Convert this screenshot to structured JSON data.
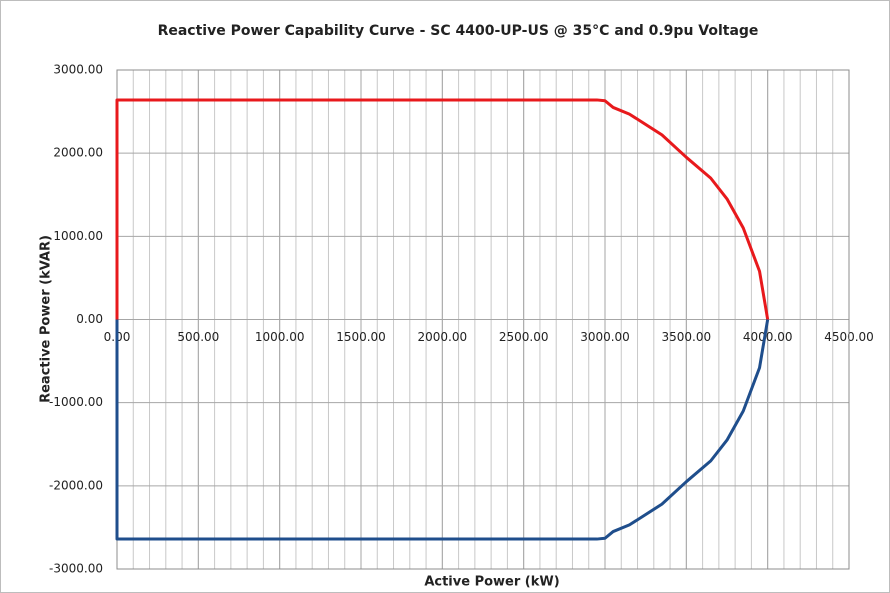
{
  "chart_data": {
    "type": "line",
    "title": "Reactive Power Capability Curve - SC 4400-UP-US @ 35°C and 0.9pu Voltage",
    "x_label": "Active Power (kW)",
    "y_label": "Reactive Power (kVAR)",
    "xlim": [
      0,
      4500
    ],
    "ylim": [
      -3000,
      3000
    ],
    "xticks": [
      {
        "value": 0,
        "label": "0.00"
      },
      {
        "value": 500,
        "label": "500.00"
      },
      {
        "value": 1000,
        "label": "1000.00"
      },
      {
        "value": 1500,
        "label": "1500.00"
      },
      {
        "value": 2000,
        "label": "2000.00"
      },
      {
        "value": 2500,
        "label": "2500.00"
      },
      {
        "value": 3000,
        "label": "3000.00"
      },
      {
        "value": 3500,
        "label": "3500.00"
      },
      {
        "value": 4000,
        "label": "4000.00"
      },
      {
        "value": 4500,
        "label": "4500.00"
      }
    ],
    "yticks": [
      {
        "value": -3000,
        "label": "-3000.00"
      },
      {
        "value": -2000,
        "label": "-2000.00"
      },
      {
        "value": -1000,
        "label": "-1000.00"
      },
      {
        "value": 0,
        "label": "0.00"
      },
      {
        "value": 1000,
        "label": "1000.00"
      },
      {
        "value": 2000,
        "label": "2000.00"
      },
      {
        "value": 3000,
        "label": "3000.00"
      }
    ],
    "x_minor_step": 100,
    "grid": true,
    "series": [
      {
        "color": "#e8191c",
        "x": [
          0,
          0,
          2950,
          3000,
          3050,
          3150,
          3350,
          3500,
          3650,
          3750,
          3850,
          3950,
          4000
        ],
        "values": [
          0,
          2640,
          2640,
          2630,
          2550,
          2470,
          2220,
          1950,
          1700,
          1450,
          1100,
          580,
          0
        ]
      },
      {
        "color": "#1f4e8c",
        "x": [
          0,
          0,
          2950,
          3000,
          3050,
          3150,
          3350,
          3500,
          3650,
          3750,
          3850,
          3950,
          4000
        ],
        "values": [
          0,
          -2640,
          -2640,
          -2630,
          -2550,
          -2470,
          -2220,
          -1950,
          -1700,
          -1450,
          -1100,
          -580,
          0
        ]
      }
    ]
  }
}
